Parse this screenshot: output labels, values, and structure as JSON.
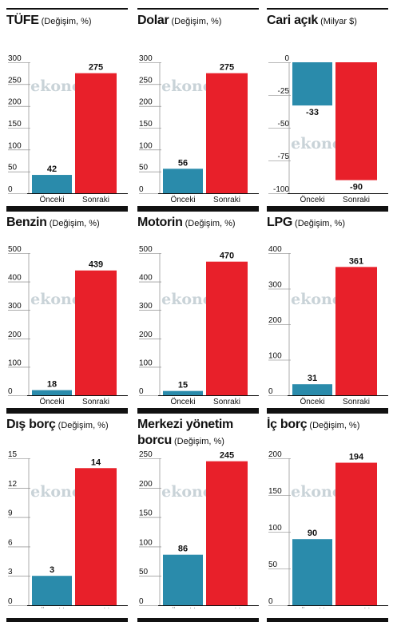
{
  "colors": {
    "before": "#2a8bab",
    "after": "#e8202a",
    "axis": "#111111",
    "watermark": "#c9d3d8"
  },
  "watermark": "ekonomi",
  "chart_data": [
    {
      "type": "bar",
      "title": "TÜFE",
      "subtitle": "(Değişim, %)",
      "categories": [
        "Önceki",
        "Sonraki"
      ],
      "values": [
        42,
        275
      ],
      "ylim": [
        0,
        300
      ],
      "yticks": [
        0,
        50,
        100,
        150,
        200,
        250,
        300
      ]
    },
    {
      "type": "bar",
      "title": "Dolar",
      "subtitle": "(Değişim, %)",
      "categories": [
        "Önceki",
        "Sonraki"
      ],
      "values": [
        56,
        275
      ],
      "ylim": [
        0,
        300
      ],
      "yticks": [
        0,
        50,
        100,
        150,
        200,
        250,
        300
      ]
    },
    {
      "type": "bar",
      "title": "Cari açık",
      "subtitle": "(Milyar $)",
      "categories": [
        "Önceki",
        "Sonraki"
      ],
      "values": [
        -33,
        -90
      ],
      "ylim": [
        -100,
        0
      ],
      "yticks": [
        0,
        -25,
        -50,
        -75,
        -100
      ]
    },
    {
      "type": "bar",
      "title": "Benzin",
      "subtitle": "(Değişim, %)",
      "categories": [
        "Önceki",
        "Sonraki"
      ],
      "values": [
        18,
        439
      ],
      "ylim": [
        0,
        500
      ],
      "yticks": [
        0,
        100,
        200,
        300,
        400,
        500
      ]
    },
    {
      "type": "bar",
      "title": "Motorin",
      "subtitle": "(Değişim, %)",
      "categories": [
        "Önceki",
        "Sonraki"
      ],
      "values": [
        15,
        470
      ],
      "ylim": [
        0,
        500
      ],
      "yticks": [
        0,
        100,
        200,
        300,
        400,
        500
      ]
    },
    {
      "type": "bar",
      "title": "LPG",
      "subtitle": "(Değişim, %)",
      "categories": [
        "Önceki",
        "Sonraki"
      ],
      "values": [
        31,
        361
      ],
      "ylim": [
        0,
        400
      ],
      "yticks": [
        0,
        100,
        200,
        300,
        400
      ]
    },
    {
      "type": "bar",
      "title": "Dış borç",
      "subtitle": "(Değişim, %)",
      "categories": [
        "Önceki",
        "Sonraki"
      ],
      "values": [
        3,
        14
      ],
      "ylim": [
        0,
        15
      ],
      "yticks": [
        0,
        3,
        6,
        9,
        12,
        15
      ]
    },
    {
      "type": "bar",
      "title": "Merkezi yönetim borcu",
      "subtitle": "(Değişim, %)",
      "categories": [
        "Önceki",
        "Sonraki"
      ],
      "values": [
        86,
        245
      ],
      "ylim": [
        0,
        250
      ],
      "yticks": [
        0,
        50,
        100,
        150,
        200,
        250
      ]
    },
    {
      "type": "bar",
      "title": "İç borç",
      "subtitle": "(Değişim, %)",
      "categories": [
        "Önceki",
        "Sonraki"
      ],
      "values": [
        90,
        194
      ],
      "ylim": [
        0,
        200
      ],
      "yticks": [
        0,
        50,
        100,
        150,
        200
      ]
    }
  ]
}
